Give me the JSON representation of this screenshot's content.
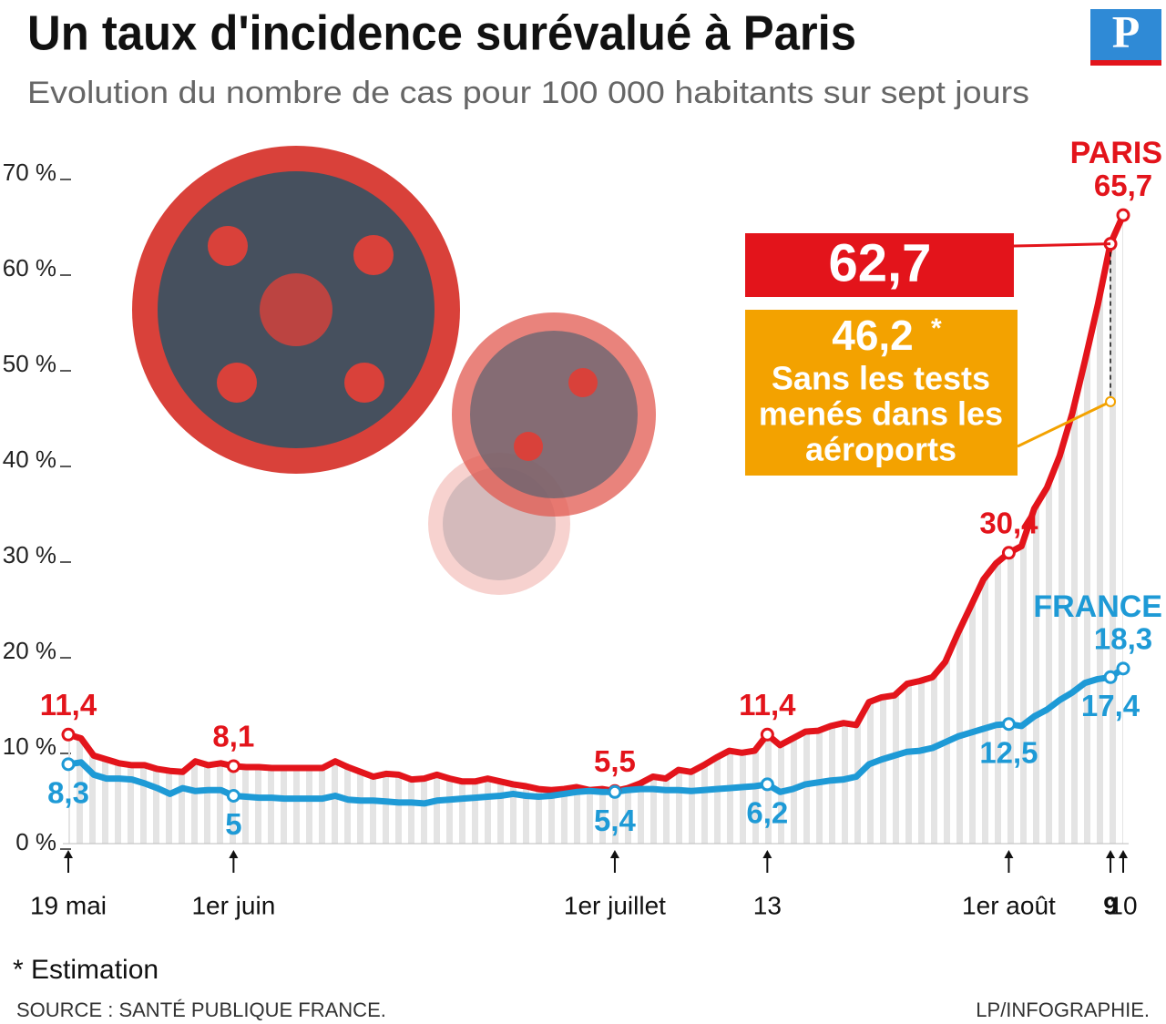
{
  "chart_data": {
    "type": "line",
    "title": "Un taux d'incidence surévalué à Paris",
    "subtitle": "Evolution du nombre de cas pour 100 000 habitants sur sept jours",
    "logo": "P",
    "categories": [
      "19 mai",
      null,
      null,
      null,
      null,
      null,
      null,
      null,
      null,
      null,
      null,
      null,
      null,
      "1er juin",
      null,
      null,
      null,
      null,
      null,
      null,
      null,
      null,
      null,
      null,
      null,
      null,
      null,
      null,
      null,
      null,
      null,
      null,
      null,
      null,
      null,
      null,
      null,
      null,
      null,
      null,
      null,
      null,
      null,
      "1er juillet",
      null,
      null,
      null,
      null,
      null,
      null,
      null,
      null,
      null,
      null,
      null,
      "13",
      null,
      null,
      null,
      null,
      null,
      null,
      null,
      null,
      null,
      null,
      null,
      null,
      null,
      null,
      null,
      null,
      null,
      null,
      "1er août",
      null,
      null,
      null,
      null,
      null,
      null,
      null,
      "9",
      "10"
    ],
    "series": [
      {
        "name": "PARIS",
        "color": "#e3141b",
        "values": [
          11.4,
          11.0,
          9.2,
          8.8,
          8.4,
          8.2,
          8.2,
          7.8,
          7.6,
          7.5,
          8.6,
          8.2,
          8.4,
          8.1,
          8.0,
          8.0,
          7.9,
          7.9,
          7.9,
          7.9,
          7.9,
          8.6,
          8.0,
          7.5,
          7.0,
          7.3,
          7.2,
          6.7,
          6.8,
          7.2,
          6.8,
          6.5,
          6.5,
          6.8,
          6.5,
          6.2,
          6.0,
          5.7,
          5.6,
          5.7,
          5.9,
          5.6,
          5.7,
          5.5,
          5.8,
          6.3,
          7.0,
          6.8,
          7.7,
          7.5,
          8.2,
          9.0,
          9.7,
          9.5,
          9.7,
          11.4,
          10.3,
          11.0,
          11.7,
          11.8,
          12.3,
          12.6,
          12.4,
          14.8,
          15.3,
          15.5,
          16.7,
          17.0,
          17.4,
          19.0,
          22.0,
          24.8,
          27.6,
          29.3,
          30.4,
          31.1,
          35.0,
          37.2,
          40.5,
          45.0,
          50.5,
          56.3,
          62.7,
          65.7
        ],
        "value_labels": [
          "11,4",
          null,
          null,
          null,
          null,
          null,
          null,
          null,
          null,
          null,
          null,
          null,
          null,
          "8,1",
          null,
          null,
          null,
          null,
          null,
          null,
          null,
          null,
          null,
          null,
          null,
          null,
          null,
          null,
          null,
          null,
          null,
          null,
          null,
          null,
          null,
          null,
          null,
          null,
          null,
          null,
          null,
          null,
          null,
          "5,5",
          null,
          null,
          null,
          null,
          null,
          null,
          null,
          null,
          null,
          null,
          null,
          "11,4",
          null,
          null,
          null,
          null,
          null,
          null,
          null,
          null,
          null,
          null,
          null,
          null,
          null,
          null,
          null,
          null,
          null,
          null,
          "30,4",
          null,
          null,
          null,
          null,
          null,
          null,
          null,
          "62,7",
          "65,7"
        ]
      },
      {
        "name": "FRANCE",
        "color": "#1e9ad6",
        "values": [
          8.3,
          8.5,
          7.2,
          6.8,
          6.8,
          6.7,
          6.3,
          5.8,
          5.2,
          5.8,
          5.5,
          5.6,
          5.6,
          5.0,
          4.9,
          4.8,
          4.8,
          4.7,
          4.7,
          4.7,
          4.7,
          5.0,
          4.6,
          4.5,
          4.5,
          4.4,
          4.3,
          4.3,
          4.2,
          4.5,
          4.6,
          4.7,
          4.8,
          4.9,
          5.0,
          5.2,
          5.0,
          4.9,
          5.0,
          5.2,
          5.4,
          5.5,
          5.4,
          5.4,
          5.6,
          5.7,
          5.7,
          5.6,
          5.6,
          5.5,
          5.6,
          5.7,
          5.8,
          5.9,
          6.0,
          6.2,
          5.4,
          5.7,
          6.2,
          6.4,
          6.6,
          6.7,
          7.0,
          8.3,
          8.8,
          9.2,
          9.6,
          9.7,
          10.0,
          10.6,
          11.2,
          11.6,
          12.0,
          12.4,
          12.5,
          12.3,
          13.3,
          14.0,
          15.0,
          15.8,
          16.8,
          17.2,
          17.4,
          18.3
        ],
        "value_labels": [
          "8,3",
          null,
          null,
          null,
          null,
          null,
          null,
          null,
          null,
          null,
          null,
          null,
          null,
          "5",
          null,
          null,
          null,
          null,
          null,
          null,
          null,
          null,
          null,
          null,
          null,
          null,
          null,
          null,
          null,
          null,
          null,
          null,
          null,
          null,
          null,
          null,
          null,
          null,
          null,
          null,
          null,
          null,
          null,
          "5,4",
          null,
          null,
          null,
          null,
          null,
          null,
          null,
          null,
          null,
          null,
          null,
          "6,2",
          null,
          null,
          null,
          null,
          null,
          null,
          null,
          null,
          null,
          null,
          null,
          null,
          null,
          null,
          null,
          null,
          null,
          null,
          "12,5",
          null,
          null,
          null,
          null,
          null,
          null,
          null,
          "17,4",
          "18,3"
        ]
      }
    ],
    "estimate": {
      "category": "9",
      "value": 46.2,
      "label": "46,2",
      "marker": "*",
      "color": "#f3a200",
      "note": [
        "Sans les tests",
        "menés dans les",
        "aéroports"
      ]
    },
    "ylim": [
      0,
      70
    ],
    "yticks": [
      {
        "value": 0,
        "label": "0 %"
      },
      {
        "value": 10,
        "label": "10 %"
      },
      {
        "value": 20,
        "label": "20 %"
      },
      {
        "value": 30,
        "label": "30 %"
      },
      {
        "value": 40,
        "label": "40 %"
      },
      {
        "value": 50,
        "label": "50 %"
      },
      {
        "value": 60,
        "label": "60 %"
      },
      {
        "value": 70,
        "label": "70 %"
      }
    ],
    "grid": false,
    "footnote": "* Estimation",
    "source": "SOURCE : SANTÉ PUBLIQUE FRANCE.",
    "credit": "LP/INFOGRAPHIE."
  }
}
